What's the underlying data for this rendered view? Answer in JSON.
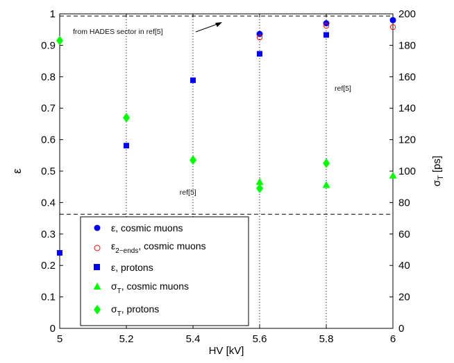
{
  "chart_data": {
    "type": "scatter",
    "xlabel": "HV [kV]",
    "ylabel_left": "ε",
    "ylabel_right": "σT [ps]",
    "xlim": [
      5,
      6
    ],
    "ylim_left": [
      0,
      1
    ],
    "ylim_right": [
      0,
      200
    ],
    "x_ticks": [
      "5",
      "5.2",
      "5.4",
      "5.6",
      "5.8",
      "6"
    ],
    "y_ticks_left": [
      "0",
      "0.1",
      "0.2",
      "0.3",
      "0.4",
      "0.5",
      "0.6",
      "0.7",
      "0.8",
      "0.9",
      "1"
    ],
    "y_ticks_right": [
      "0",
      "20",
      "40",
      "60",
      "80",
      "100",
      "120",
      "140",
      "160",
      "180",
      "200"
    ],
    "grid": "vertical dotted at 5.2, 5.4, 5.6, 5.8",
    "series": [
      {
        "name": "ε, cosmic muons",
        "axis": "left",
        "marker": "circle-filled",
        "color": "#0000ff",
        "x": [
          5.6,
          5.8,
          6.0
        ],
        "y": [
          0.936,
          0.97,
          0.98
        ]
      },
      {
        "name": "ε2-ends, cosmic muons",
        "axis": "left",
        "marker": "circle-open",
        "color": "#ff0000",
        "x": [
          5.6,
          5.8,
          6.0
        ],
        "y": [
          0.925,
          0.962,
          0.958
        ]
      },
      {
        "name": "ε, protons",
        "axis": "left",
        "marker": "square",
        "color": "#0000ff",
        "x": [
          5.0,
          5.2,
          5.4,
          5.6,
          5.8
        ],
        "y": [
          0.24,
          0.581,
          0.789,
          0.873,
          0.933
        ]
      },
      {
        "name": "σT, cosmic muons",
        "axis": "right",
        "marker": "triangle",
        "color": "#00ff00",
        "x": [
          5.6,
          5.8,
          6.0
        ],
        "y": [
          93,
          91,
          97
        ]
      },
      {
        "name": "σT, protons",
        "axis": "right",
        "marker": "diamond",
        "color": "#00ff00",
        "x": [
          5.0,
          5.2,
          5.4,
          5.6,
          5.8
        ],
        "y": [
          183,
          134,
          107,
          89,
          105
        ]
      }
    ],
    "reference_lines": [
      {
        "axis": "left",
        "y": 0.993,
        "style": "dashed",
        "label": "from HADES sector in ref[5]"
      },
      {
        "axis": "left",
        "y": 0.363,
        "style": "dashed"
      }
    ],
    "annotations": [
      {
        "text": "ref[5]",
        "x": 5.825,
        "y": 0.755
      },
      {
        "text": "ref[5]",
        "x": 5.36,
        "y": 0.425
      }
    ],
    "legend": {
      "placement": "bottom-left",
      "entries": [
        {
          "text": "ε, cosmic muons"
        },
        {
          "text_main": "ε",
          "text_sub": "2−ends",
          "text_tail": ", cosmic muons"
        },
        {
          "text": "ε, protons"
        },
        {
          "text_main": "σ",
          "text_sub": "T",
          "text_tail": ", cosmic muons"
        },
        {
          "text_main": "σ",
          "text_sub": "T",
          "text_tail": ", protons"
        }
      ]
    }
  }
}
